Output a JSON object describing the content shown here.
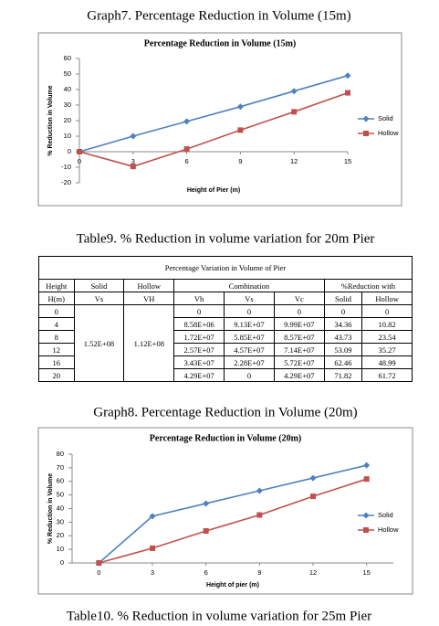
{
  "captions": [
    "Graph7. Percentage Reduction in Volume (15m)",
    "Table9. % Reduction in volume variation for 20m Pier",
    "Graph8. Percentage Reduction in Volume (20m)",
    "Table10. % Reduction in volume variation for 25m Pier"
  ],
  "chart_data": [
    {
      "type": "line",
      "title": "Percentage Reduction  in Volume (15m)",
      "x_label": "Height of Pier (m)",
      "y_label": "% Reduction in Volume",
      "x": [
        0,
        3,
        6,
        9,
        12,
        15
      ],
      "xlim": [
        0,
        15
      ],
      "xticks": [
        0,
        3,
        6,
        9,
        12,
        15
      ],
      "ylim": [
        -20,
        60
      ],
      "yticks": [
        -20,
        -10,
        0,
        10,
        20,
        30,
        40,
        50,
        60
      ],
      "grid": false,
      "legend": "right",
      "series": [
        {
          "name": "Solid",
          "color": "#4f81bd",
          "values": [
            0,
            10,
            19.5,
            29,
            39,
            49
          ]
        },
        {
          "name": "Hollow",
          "color": "#c0504d",
          "values": [
            0,
            -9.5,
            1.7,
            13.9,
            25.7,
            37.9
          ]
        }
      ]
    },
    {
      "type": "line",
      "title": "Percentage Reduction  in Volume (20m)",
      "x_label": "Height of pier (m)",
      "y_label": "% Reduction in Volume",
      "x": [
        0,
        3,
        6,
        9,
        12,
        15
      ],
      "xlim": [
        -1.5,
        16.5
      ],
      "xticks": [
        0,
        3,
        6,
        9,
        12,
        15
      ],
      "ylim": [
        0,
        80
      ],
      "yticks": [
        0,
        10,
        20,
        30,
        40,
        50,
        60,
        70,
        80
      ],
      "grid": false,
      "legend": "right",
      "series": [
        {
          "name": "Solid",
          "color": "#4f81bd",
          "values": [
            0,
            34.36,
            43.73,
            53.09,
            62.46,
            71.82
          ]
        },
        {
          "name": "Hollow",
          "color": "#c0504d",
          "values": [
            0,
            10.82,
            23.54,
            35.27,
            48.99,
            61.72
          ]
        }
      ]
    }
  ],
  "table": {
    "title": "Percentage Variation in Volume of Pier",
    "header1": [
      "Height",
      "Solid",
      "Hollow",
      "Combination",
      "%Reduction with"
    ],
    "header2": [
      "H(m)",
      "Vs",
      "VH",
      "Vh",
      "Vs",
      "Vc",
      "Solid",
      "Hollow"
    ],
    "solid": "1.52E+08",
    "hollow": "1.12E+08",
    "rows": [
      [
        "0",
        "0",
        "0",
        "0",
        "0",
        "0"
      ],
      [
        "4",
        "8.58E+06",
        "9.13E+07",
        "9.99E+07",
        "34.36",
        "10.82"
      ],
      [
        "8",
        "1.72E+07",
        "5.85E+07",
        "8.57E+07",
        "43.73",
        "23.54"
      ],
      [
        "12",
        "2.57E+07",
        "4.57E+07",
        "7.14E+07",
        "53.09",
        "35.27"
      ],
      [
        "16",
        "3.43E+07",
        "2.28E+07",
        "5.72E+07",
        "62.46",
        "48.99"
      ],
      [
        "20",
        "4.29E+07",
        "0",
        "4.29E+07",
        "71.82",
        "61.72"
      ]
    ]
  }
}
